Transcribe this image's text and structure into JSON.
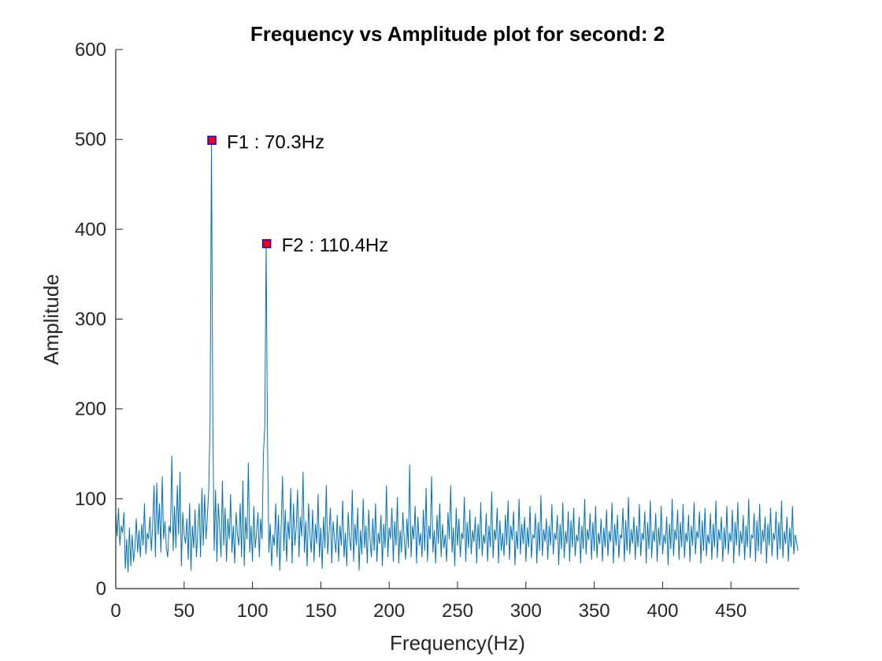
{
  "chart_data": {
    "type": "line",
    "title": "Frequency vs Amplitude plot for second: 2",
    "xlabel": "Frequency(Hz)",
    "ylabel": "Amplitude",
    "xlim": [
      0,
      500
    ],
    "ylim": [
      0,
      600
    ],
    "xticks": [
      0,
      50,
      100,
      150,
      200,
      250,
      300,
      350,
      400,
      450
    ],
    "yticks": [
      0,
      100,
      200,
      300,
      400,
      500,
      600
    ],
    "grid": false,
    "line_color": "#0072BD",
    "marker_fill": "#FF0000",
    "marker_edge": "#0000FF",
    "peaks": [
      {
        "label": "F1 : 70.3Hz",
        "x": 70.3,
        "y": 499
      },
      {
        "label": "F2 : 110.4Hz",
        "x": 110.4,
        "y": 384
      }
    ],
    "series": [
      {
        "x_start": 0,
        "x_step": 1,
        "values": [
          85,
          58,
          90,
          48,
          70,
          62,
          85,
          22,
          55,
          18,
          68,
          25,
          60,
          30,
          45,
          78,
          40,
          65,
          35,
          72,
          48,
          95,
          38,
          62,
          55,
          80,
          42,
          70,
          115,
          35,
          118,
          60,
          95,
          40,
          125,
          55,
          75,
          45,
          35,
          70,
          62,
          148,
          42,
          92,
          45,
          115,
          60,
          130,
          25,
          85,
          60,
          50,
          78,
          32,
          95,
          20,
          70,
          45,
          88,
          35,
          65,
          95,
          35,
          112,
          48,
          105,
          55,
          80,
          110,
          185,
          499,
          190,
          42,
          110,
          30,
          95,
          68,
          35,
          120,
          48,
          90,
          30,
          78,
          55,
          105,
          40,
          70,
          28,
          85,
          60,
          48,
          95,
          35,
          120,
          25,
          80,
          55,
          140,
          40,
          70,
          30,
          92,
          45,
          62,
          85,
          35,
          78,
          55,
          150,
          180,
          384,
          165,
          40,
          72,
          25,
          60,
          48,
          95,
          35,
          82,
          20,
          70,
          125,
          42,
          88,
          30,
          75,
          55,
          112,
          28,
          95,
          48,
          68,
          110,
          35,
          80,
          58,
          130,
          40,
          75,
          25,
          95,
          62,
          40,
          88,
          30,
          72,
          50,
          105,
          35,
          68,
          22,
          80,
          45,
          115,
          38,
          62,
          90,
          28,
          75,
          55,
          40,
          82,
          30,
          70,
          48,
          98,
          35,
          62,
          25,
          85,
          55,
          42,
          110,
          30,
          72,
          48,
          90,
          20,
          65,
          38,
          100,
          45,
          70,
          28,
          88,
          55,
          35,
          78,
          42,
          95,
          30,
          62,
          50,
          82,
          25,
          72,
          45,
          115,
          35,
          68,
          55,
          90,
          30,
          75,
          48,
          102,
          28,
          65,
          40,
          85,
          55,
          32,
          78,
          45,
          138,
          35,
          70,
          55,
          92,
          28,
          80,
          48,
          62,
          35,
          88,
          42,
          112,
          30,
          70,
          55,
          125,
          40,
          65,
          28,
          82,
          50,
          95,
          35,
          72,
          45,
          60,
          30,
          85,
          55,
          115,
          40,
          68,
          25,
          90,
          48,
          78,
          35,
          62,
          55,
          102,
          30,
          74,
          45,
          88,
          38,
          65,
          52,
          80,
          28,
          72,
          44,
          96,
          36,
          60,
          50,
          84,
          30,
          70,
          46,
          108,
          34,
          66,
          54,
          90,
          28,
          76,
          42,
          62,
          36,
          82,
          48,
          98,
          32,
          70,
          54,
          86,
          26,
          64,
          44,
          100,
          38,
          72,
          50,
          80,
          30,
          68,
          46,
          92,
          34,
          60,
          56,
          84,
          28,
          74,
          42,
          104,
          36,
          66,
          52,
          78,
          32,
          70,
          48,
          94,
          38,
          62,
          54,
          82,
          26,
          72,
          44,
          96,
          34,
          64,
          50,
          86,
          30,
          76,
          46,
          90,
          36,
          60,
          52,
          80,
          28,
          70,
          44,
          100,
          38,
          66,
          54,
          84,
          32,
          74,
          42,
          92,
          34,
          62,
          50,
          78,
          30,
          68,
          46,
          88,
          36,
          64,
          52,
          96,
          28,
          72,
          48,
          82,
          34,
          60,
          56,
          90,
          30,
          76,
          42,
          102,
          38,
          66,
          50,
          80,
          32,
          70,
          46,
          94,
          36,
          62,
          54,
          86,
          28,
          74,
          44,
          98,
          34,
          64,
          52,
          84,
          30,
          68,
          48,
          92,
          38,
          60,
          50,
          80,
          26,
          72,
          44,
          100,
          36,
          66,
          54,
          88,
          32,
          74,
          46,
          94,
          34,
          62,
          52,
          82,
          30,
          70,
          48,
          96,
          38,
          64,
          56,
          86,
          28,
          76,
          42,
          90,
          36,
          60,
          50,
          84,
          32,
          72,
          46,
          98,
          34,
          66,
          54,
          80,
          30,
          68,
          44,
          92,
          38,
          62,
          52,
          88,
          28,
          74,
          48,
          96,
          36,
          64,
          50,
          82,
          32,
          70,
          46,
          100,
          34,
          60,
          56,
          84,
          30,
          76,
          42,
          94,
          38,
          66,
          52,
          80,
          28,
          72,
          48,
          90,
          36,
          62,
          54,
          86,
          32,
          74,
          44,
          98,
          34,
          64,
          50,
          80,
          30,
          68,
          46,
          92,
          38,
          60,
          52,
          42
        ]
      }
    ]
  }
}
